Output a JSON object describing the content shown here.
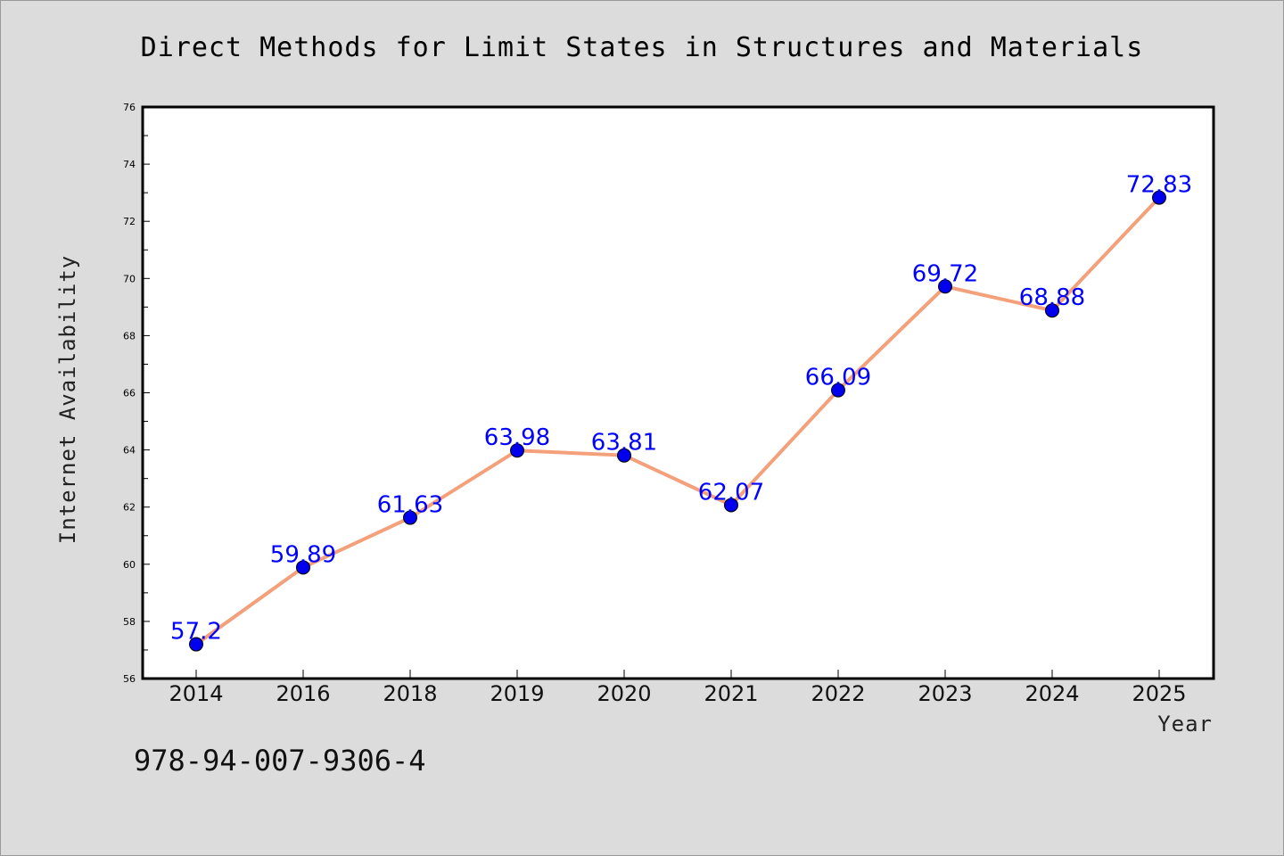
{
  "chart_data": {
    "type": "line",
    "title": "Direct Methods for Limit States in Structures and Materials",
    "xlabel": "Year",
    "ylabel": "Internet Availability",
    "categories": [
      "2014",
      "2016",
      "2018",
      "2019",
      "2020",
      "2021",
      "2022",
      "2023",
      "2024",
      "2025"
    ],
    "series": [
      {
        "values": [
          57.2,
          59.89,
          61.63,
          63.98,
          63.81,
          62.07,
          66.09,
          69.72,
          68.88,
          72.83
        ],
        "labels": [
          "57.2",
          "59.89",
          "61.63",
          "63.98",
          "63.81",
          "62.07",
          "66.09",
          "69.72",
          "68.88",
          "72.83"
        ],
        "line_color": "#f4a07a",
        "marker_color": "#0000ee"
      }
    ],
    "ylim": [
      56,
      76
    ],
    "yticks": [
      "56",
      "58",
      "60",
      "62",
      "64",
      "66",
      "68",
      "70",
      "72",
      "74",
      "76"
    ],
    "grid": false,
    "legend": "none"
  },
  "footer": {
    "isbn": "978-94-007-9306-4"
  }
}
